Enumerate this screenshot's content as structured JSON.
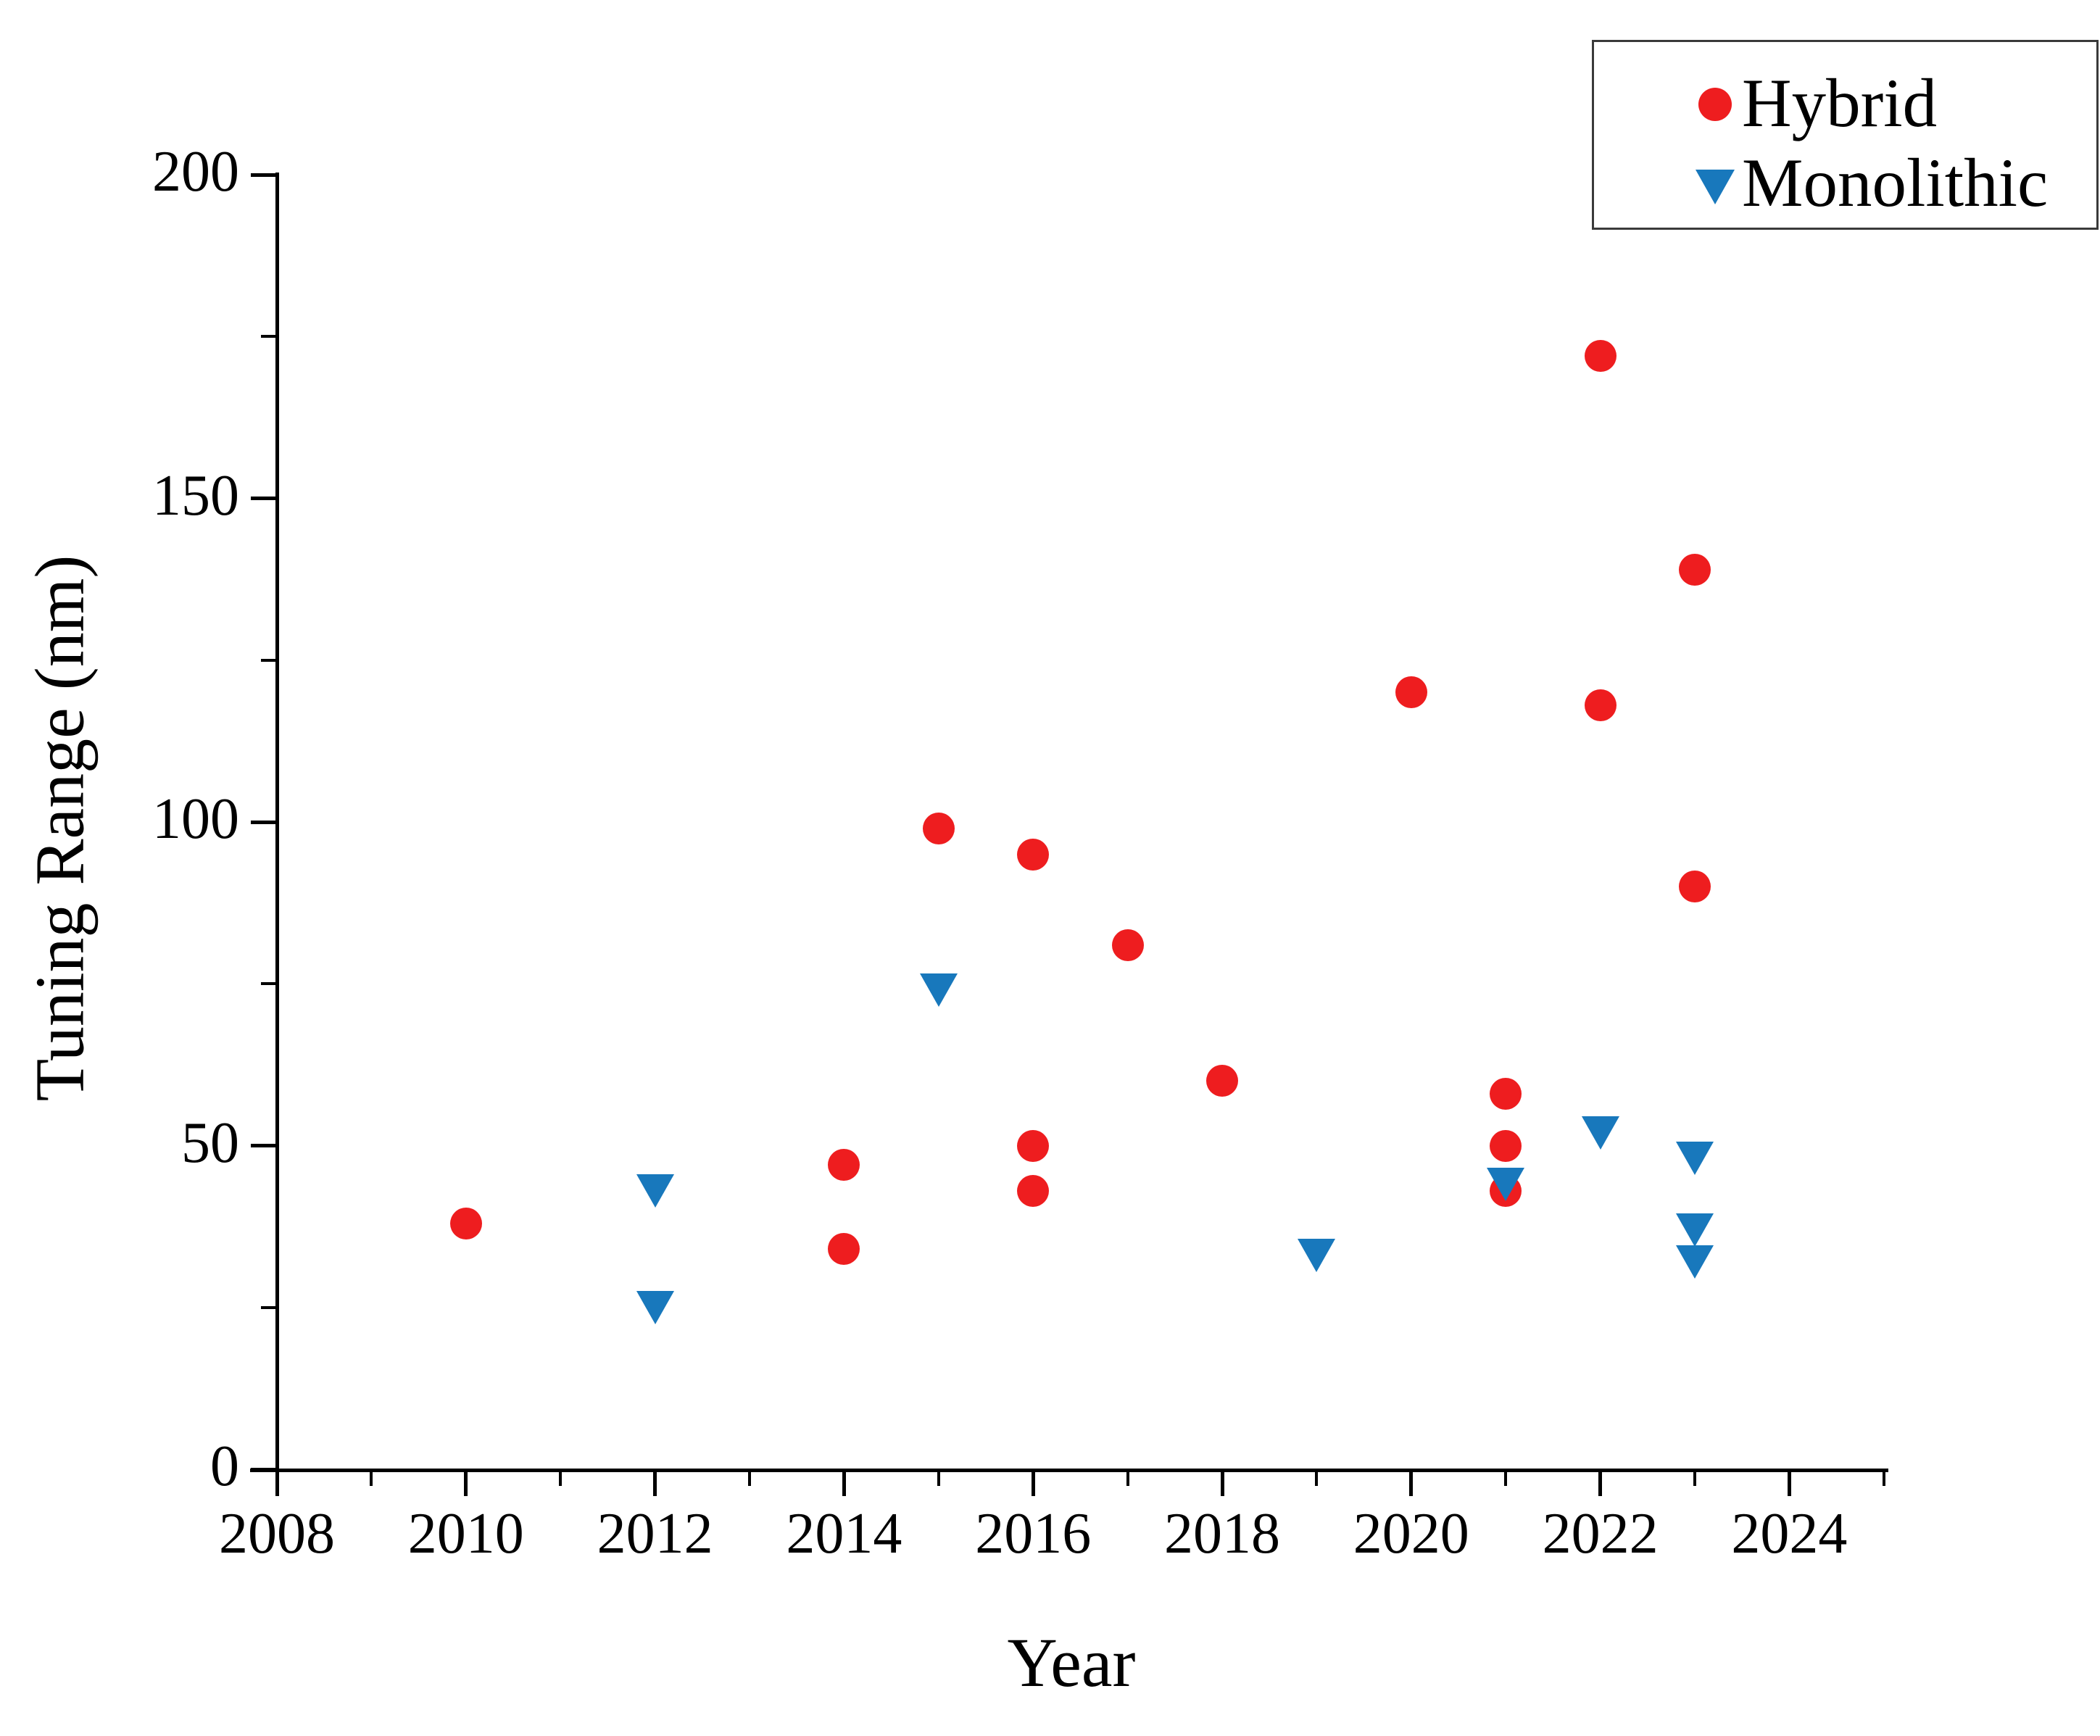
{
  "chart_data": {
    "type": "scatter",
    "title": "",
    "xlabel": "Year",
    "ylabel": "Tuning Range (nm)",
    "xlim": [
      2007.5,
      2025
    ],
    "ylim": [
      0,
      200
    ],
    "x_major_ticks": [
      2008,
      2010,
      2012,
      2014,
      2016,
      2018,
      2020,
      2022,
      2024
    ],
    "x_minor_ticks": [
      2009,
      2011,
      2013,
      2015,
      2017,
      2019,
      2021,
      2023,
      2025
    ],
    "y_major_ticks": [
      0,
      50,
      100,
      150,
      200
    ],
    "y_minor_ticks": [
      25,
      75,
      125,
      175
    ],
    "grid": false,
    "legend_position": "top-right",
    "colors": {
      "hybrid": "#EE1D1F",
      "monolithic": "#1878BC",
      "axis": "#000000",
      "legend_border": "#3a3a3a"
    },
    "series": [
      {
        "name": "Hybrid",
        "marker": "circle",
        "color": "#EE1D1F",
        "points": [
          [
            2010,
            38
          ],
          [
            2014,
            47
          ],
          [
            2014,
            34
          ],
          [
            2015,
            99
          ],
          [
            2016,
            95
          ],
          [
            2016,
            50
          ],
          [
            2016,
            43
          ],
          [
            2017,
            81
          ],
          [
            2018,
            60
          ],
          [
            2020,
            120
          ],
          [
            2021,
            58
          ],
          [
            2021,
            50
          ],
          [
            2021,
            43
          ],
          [
            2022,
            172
          ],
          [
            2022,
            118
          ],
          [
            2023,
            139
          ],
          [
            2023,
            90
          ]
        ]
      },
      {
        "name": "Monolithic",
        "marker": "triangle-down",
        "color": "#1878BC",
        "points": [
          [
            2012,
            43
          ],
          [
            2012,
            25
          ],
          [
            2015,
            74
          ],
          [
            2019,
            33
          ],
          [
            2021,
            44
          ],
          [
            2022,
            52
          ],
          [
            2023,
            48
          ],
          [
            2023,
            37
          ],
          [
            2023,
            32
          ]
        ]
      }
    ]
  }
}
